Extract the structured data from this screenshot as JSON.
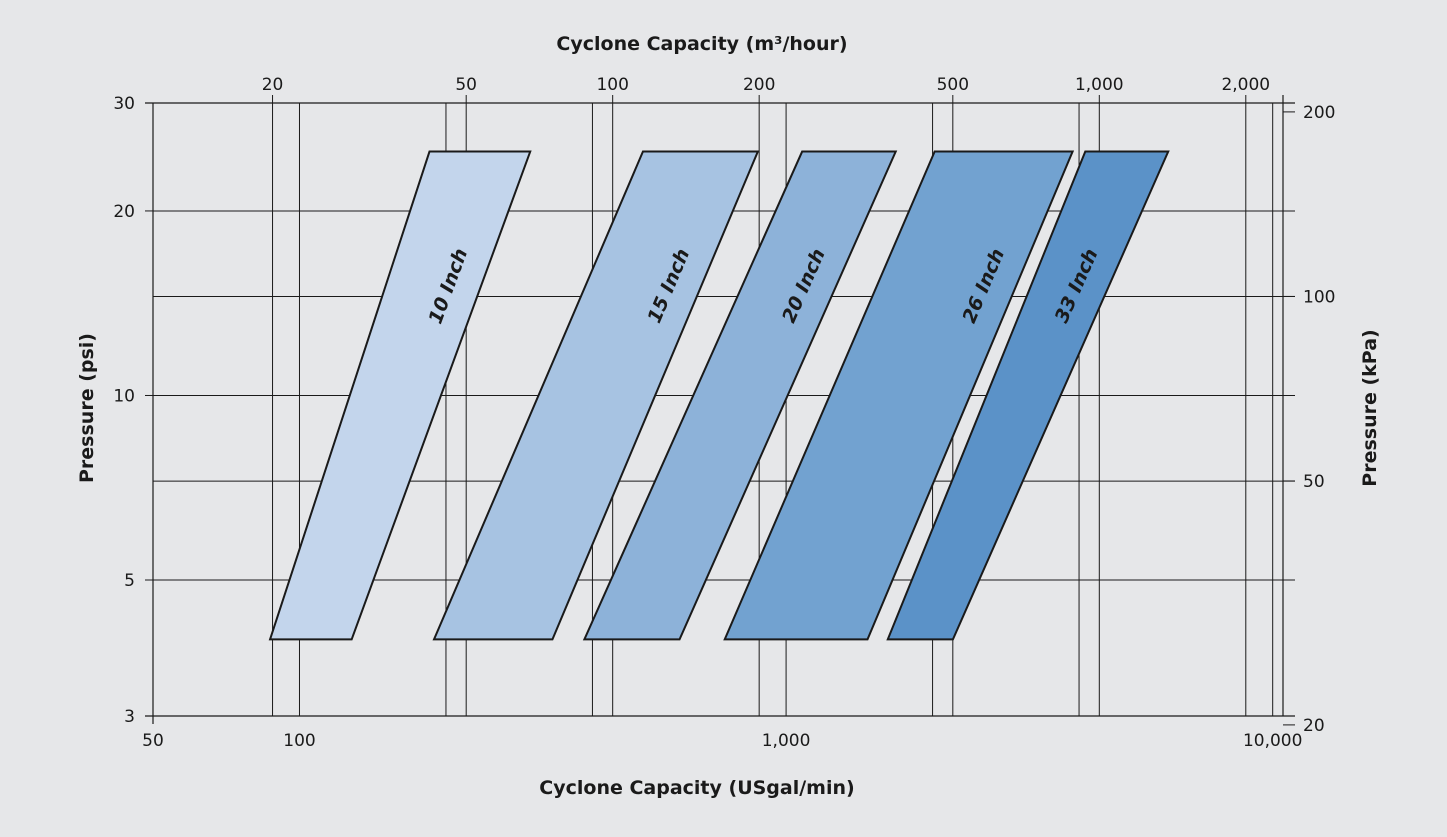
{
  "chart_data": {
    "type": "area",
    "axes": {
      "x_bottom": {
        "label": "Cyclone Capacity (USgal/min)",
        "scale": "log",
        "range": [
          50,
          10500
        ],
        "ticks": [
          {
            "value": 50,
            "label": "50"
          },
          {
            "value": 100,
            "label": "100"
          },
          {
            "value": 1000,
            "label": "1,000"
          },
          {
            "value": 10000,
            "label": "10,000"
          }
        ],
        "gridlines": [
          100,
          200,
          400,
          1000,
          2000,
          4000,
          10000
        ]
      },
      "x_top": {
        "label": "Cyclone Capacity (m³/hour)",
        "scale": "log",
        "range": [
          11.36,
          2385
        ],
        "ticks": [
          {
            "value": 20,
            "label": "20"
          },
          {
            "value": 50,
            "label": "50"
          },
          {
            "value": 100,
            "label": "100"
          },
          {
            "value": 200,
            "label": "200"
          },
          {
            "value": 500,
            "label": "500"
          },
          {
            "value": 1000,
            "label": "1,000"
          },
          {
            "value": 2000,
            "label": "2,000"
          }
        ]
      },
      "y_left": {
        "label": "Pressure (psi)",
        "scale": "log",
        "range": [
          3,
          30
        ],
        "ticks": [
          {
            "value": 3,
            "label": "3"
          },
          {
            "value": 5,
            "label": "5"
          },
          {
            "value": 10,
            "label": "10"
          },
          {
            "value": 20,
            "label": "20"
          },
          {
            "value": 30,
            "label": "30"
          }
        ],
        "gridlines": [
          5,
          7.25,
          10,
          14.5,
          20
        ]
      },
      "y_right": {
        "label": "Pressure (kPa)",
        "scale": "log",
        "range": [
          20.68,
          206.8
        ],
        "ticks": [
          {
            "value": 20,
            "label": "20"
          },
          {
            "value": 50,
            "label": "50"
          },
          {
            "value": 100,
            "label": "100"
          },
          {
            "value": 200,
            "label": "200"
          }
        ]
      }
    },
    "series": [
      {
        "name": "10 Inch",
        "color": "#c3d5ec",
        "bottom": {
          "psi": 4,
          "gpm": [
            87,
            128
          ]
        },
        "top": {
          "psi": 25,
          "gpm": [
            185,
            298
          ]
        }
      },
      {
        "name": "15 Inch",
        "color": "#a7c3e2",
        "bottom": {
          "psi": 4,
          "gpm": [
            189,
            331
          ]
        },
        "top": {
          "psi": 25,
          "gpm": [
            508,
            875
          ]
        }
      },
      {
        "name": "20 Inch",
        "color": "#8db2d9",
        "bottom": {
          "psi": 4,
          "gpm": [
            385,
            604
          ]
        },
        "top": {
          "psi": 25,
          "gpm": [
            1079,
            1680
          ]
        }
      },
      {
        "name": "26 Inch",
        "color": "#72a2d0",
        "bottom": {
          "psi": 4,
          "gpm": [
            748,
            1470
          ]
        },
        "top": {
          "psi": 25,
          "gpm": [
            2020,
            3880
          ]
        }
      },
      {
        "name": "33 Inch",
        "color": "#5b92c8",
        "bottom": {
          "psi": 4,
          "gpm": [
            1618,
            2202
          ]
        },
        "top": {
          "psi": 25,
          "gpm": [
            4120,
            6100
          ]
        }
      }
    ]
  }
}
